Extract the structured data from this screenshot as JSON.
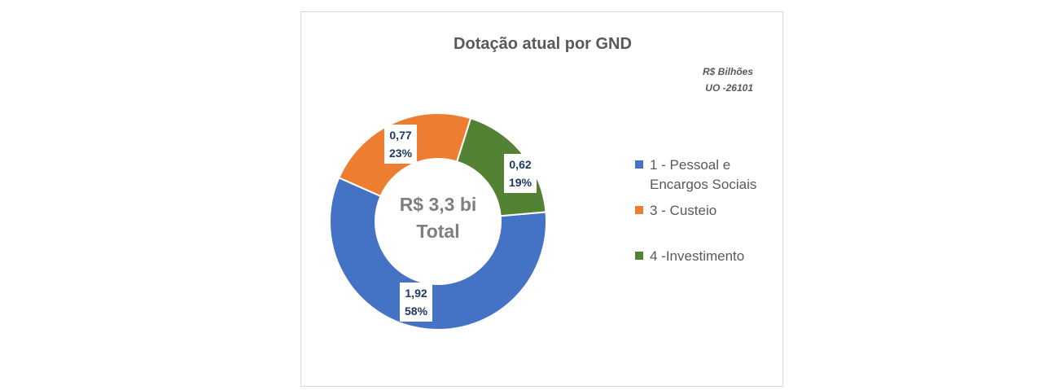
{
  "chart_data": {
    "type": "pie",
    "title": "Dotação atual por GND",
    "unit_lines": [
      "R$ Bilhões",
      "UO -26101"
    ],
    "center_label": [
      "R$ 3,3 bi",
      "Total"
    ],
    "legend_position": "right",
    "series": [
      {
        "name": "1 - Pessoal e Encargos Sociais",
        "value": 1.92,
        "value_label": "1,92",
        "percent_label": "58%",
        "color": "#4472c4"
      },
      {
        "name": "3 - Custeio",
        "value": 0.77,
        "value_label": "0,77",
        "percent_label": "23%",
        "color": "#ed7d31"
      },
      {
        "name": "4 -Investimento",
        "value": 0.62,
        "value_label": "0,62",
        "percent_label": "19%",
        "color": "#548235"
      }
    ]
  }
}
